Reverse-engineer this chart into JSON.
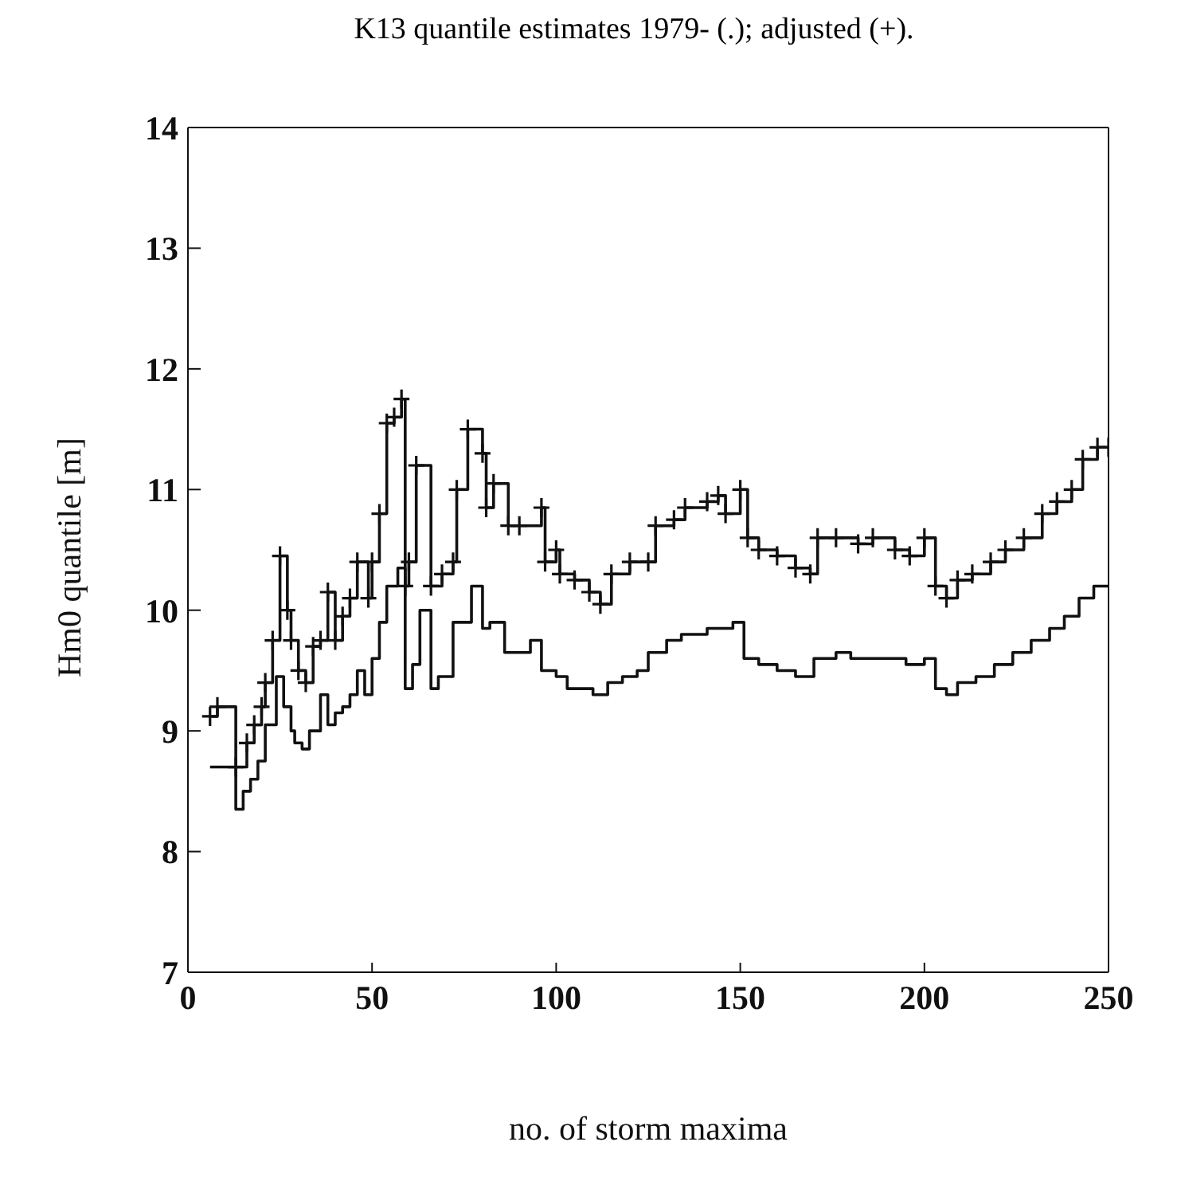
{
  "chart_data": {
    "type": "step",
    "title": "K13 quantile estimates 1979- (.); adjusted (+).",
    "xlabel": "no. of storm maxima",
    "ylabel": "Hm0 quantile [m]",
    "xlim": [
      0,
      250
    ],
    "xticks": [
      0,
      50,
      100,
      150,
      200,
      250
    ],
    "ylim": [
      7,
      14
    ],
    "yticks": [
      7,
      8,
      9,
      10,
      11,
      12,
      13,
      14
    ],
    "grid": false,
    "legend": false,
    "line_style": "solid",
    "series": [
      {
        "color": "#111111",
        "marker": "cross",
        "x": [
          6,
          8,
          13,
          16,
          18,
          20,
          21,
          23,
          25,
          27,
          28,
          30,
          32,
          34,
          36,
          38,
          40,
          42,
          44,
          46,
          49,
          50,
          52,
          54,
          56,
          58,
          59,
          60,
          62,
          66,
          69,
          72,
          73,
          76,
          80,
          81,
          83,
          87,
          90,
          96,
          97,
          100,
          101,
          105,
          109,
          112,
          115,
          120,
          125,
          127,
          132,
          135,
          141,
          144,
          146,
          150,
          152,
          155,
          160,
          165,
          169,
          171,
          176,
          182,
          186,
          192,
          196,
          200,
          203,
          206,
          209,
          213,
          218,
          222,
          227,
          232,
          236,
          240,
          243,
          247,
          250
        ],
        "values": [
          9.12,
          9.2,
          8.7,
          8.9,
          9.05,
          9.2,
          9.4,
          9.75,
          10.45,
          10.0,
          9.75,
          9.5,
          9.4,
          9.7,
          9.75,
          10.15,
          9.75,
          9.95,
          10.1,
          10.4,
          10.1,
          10.4,
          10.8,
          11.55,
          11.6,
          11.75,
          10.2,
          10.4,
          11.2,
          10.2,
          10.3,
          10.4,
          11.0,
          11.5,
          11.3,
          10.85,
          11.05,
          10.7,
          10.7,
          10.85,
          10.4,
          10.5,
          10.3,
          10.25,
          10.15,
          10.05,
          10.3,
          10.4,
          10.4,
          10.7,
          10.75,
          10.85,
          10.9,
          10.95,
          10.8,
          11.0,
          10.6,
          10.5,
          10.45,
          10.35,
          10.3,
          10.6,
          10.6,
          10.55,
          10.6,
          10.5,
          10.45,
          10.6,
          10.2,
          10.1,
          10.25,
          10.3,
          10.4,
          10.5,
          10.6,
          10.8,
          10.9,
          11.0,
          11.25,
          11.35,
          11.35
        ]
      },
      {
        "color": "#111111",
        "marker": "none",
        "x": [
          6,
          10,
          13,
          15,
          17,
          19,
          21,
          24,
          26,
          28,
          29,
          31,
          33,
          36,
          38,
          40,
          42,
          44,
          46,
          48,
          50,
          52,
          54,
          57,
          59,
          61,
          63,
          66,
          68,
          72,
          77,
          80,
          82,
          86,
          93,
          96,
          100,
          103,
          110,
          114,
          118,
          122,
          125,
          130,
          134,
          141,
          145,
          148,
          151,
          155,
          160,
          165,
          170,
          176,
          180,
          186,
          190,
          195,
          200,
          203,
          206,
          209,
          214,
          219,
          224,
          229,
          234,
          238,
          242,
          246,
          250
        ],
        "values": [
          8.7,
          8.7,
          8.35,
          8.5,
          8.6,
          8.75,
          9.05,
          9.45,
          9.2,
          9.0,
          8.9,
          8.85,
          9.0,
          9.3,
          9.05,
          9.15,
          9.2,
          9.3,
          9.5,
          9.3,
          9.6,
          9.9,
          10.2,
          10.35,
          9.35,
          9.55,
          10.0,
          9.35,
          9.45,
          9.9,
          10.2,
          9.85,
          9.9,
          9.65,
          9.75,
          9.5,
          9.45,
          9.35,
          9.3,
          9.4,
          9.45,
          9.5,
          9.65,
          9.75,
          9.8,
          9.85,
          9.85,
          9.9,
          9.6,
          9.55,
          9.5,
          9.45,
          9.6,
          9.65,
          9.6,
          9.6,
          9.6,
          9.55,
          9.6,
          9.35,
          9.3,
          9.4,
          9.45,
          9.55,
          9.65,
          9.75,
          9.85,
          9.95,
          10.1,
          10.2,
          10.2
        ]
      }
    ]
  }
}
